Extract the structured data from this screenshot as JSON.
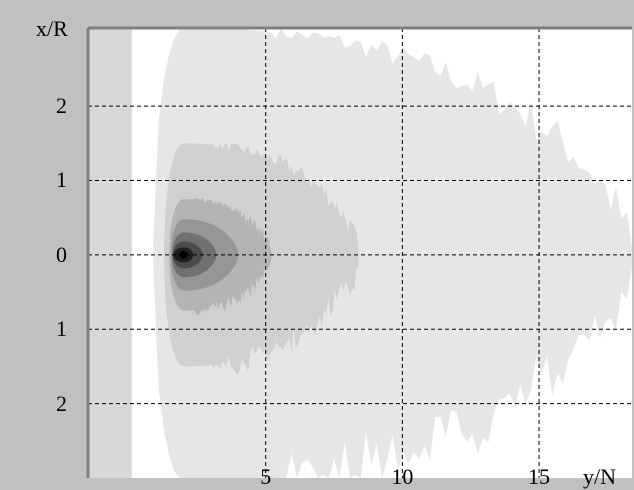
{
  "chart_data": {
    "type": "heatmap",
    "title": "",
    "xlabel": "y/N",
    "ylabel": "x/R",
    "x_range": [
      -1.5,
      18.4
    ],
    "y_range": [
      -3.0,
      3.05
    ],
    "x_ticks": [
      {
        "value": 5,
        "label": "5"
      },
      {
        "value": 10,
        "label": "10"
      },
      {
        "value": 15,
        "label": "15"
      }
    ],
    "y_ticks": [
      {
        "value": 2,
        "label": "2"
      },
      {
        "value": 1,
        "label": "1"
      },
      {
        "value": 0,
        "label": "0"
      },
      {
        "value": -1,
        "label": "1"
      },
      {
        "value": -2,
        "label": "2"
      }
    ],
    "grid": true,
    "grid_style": "dashed",
    "center": {
      "x": 2,
      "y": 0
    },
    "levels": [
      {
        "level": 1,
        "color": "#e6e6e6",
        "x_max": 18.4,
        "half_width": 3.05
      },
      {
        "level": 2,
        "color": "#d0d0d0",
        "x_max": 8.4,
        "half_width": 1.5
      },
      {
        "level": 3,
        "color": "#b4b4b4",
        "x_max": 5.2,
        "half_width": 0.75
      },
      {
        "level": 4,
        "color": "#969696",
        "x_max": 4.0,
        "half_width": 0.48
      },
      {
        "level": 5,
        "color": "#707070",
        "x_max": 3.2,
        "half_width": 0.3
      },
      {
        "level": 6,
        "color": "#4a4a4a",
        "x_max": 2.7,
        "half_width": 0.18
      },
      {
        "level": 7,
        "color": "#1e1e1e",
        "x_max": 2.35,
        "half_width": 0.1
      }
    ],
    "colors": {
      "frame": "#c0c0c0",
      "plot_background": "#ffffff",
      "left_strip": "#d8d8d8",
      "grid": "#000000",
      "axis": "#808080"
    }
  }
}
